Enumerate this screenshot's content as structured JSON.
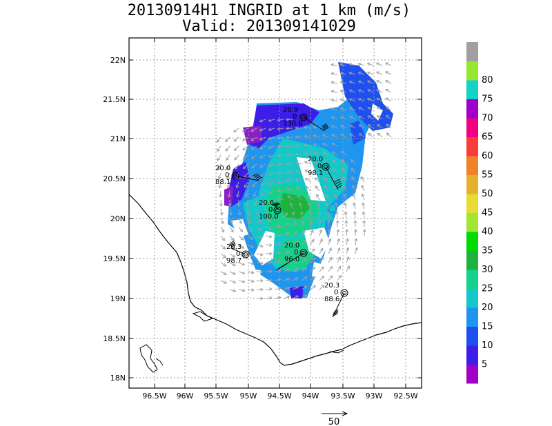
{
  "title": "20130914H1 INGRID at 1 km (m/s)",
  "subtitle": "Valid: 201309141029",
  "x_ticks": [
    "96.5W",
    "96W",
    "95.5W",
    "95W",
    "94.5W",
    "94W",
    "93.5W",
    "93W",
    "92.5W"
  ],
  "y_ticks": [
    "22N",
    "21.5N",
    "21N",
    "20.5N",
    "20N",
    "19.5N",
    "19N",
    "18.5N",
    "18N"
  ],
  "colorbar_labels": [
    "5",
    "10",
    "15",
    "20",
    "25",
    "30",
    "35",
    "40",
    "45",
    "50",
    "55",
    "60",
    "65",
    "70",
    "75",
    "80"
  ],
  "colorbar_colors": [
    "#a000c8",
    "#3c1ee6",
    "#1e50f0",
    "#1e96f0",
    "#13c8c8",
    "#14d28c",
    "#1eb43c",
    "#00dc00",
    "#a0e632",
    "#e6dc32",
    "#e6af2d",
    "#f08228",
    "#fa3c3c",
    "#f00082",
    "#a000c8",
    "#14d2c8",
    "#96e632",
    "#a0a0a0"
  ],
  "vector_scale_label": "50",
  "stations": [
    {
      "name": "st-a",
      "lines": [
        "20.9",
        "0",
        "130.0"
      ]
    },
    {
      "name": "st-b",
      "lines": [
        "20.0",
        "0",
        "98.1"
      ]
    },
    {
      "name": "st-c",
      "lines": [
        "20.0",
        "0",
        "88.1"
      ]
    },
    {
      "name": "st-d",
      "lines": [
        "20.6",
        "0",
        "100.0"
      ]
    },
    {
      "name": "st-e",
      "lines": [
        "20.3",
        "0",
        "98.7"
      ]
    },
    {
      "name": "st-f",
      "lines": [
        "20.0",
        "0",
        "96.0"
      ]
    },
    {
      "name": "st-g",
      "lines": [
        "20.3",
        "0",
        "88.6"
      ]
    }
  ]
}
